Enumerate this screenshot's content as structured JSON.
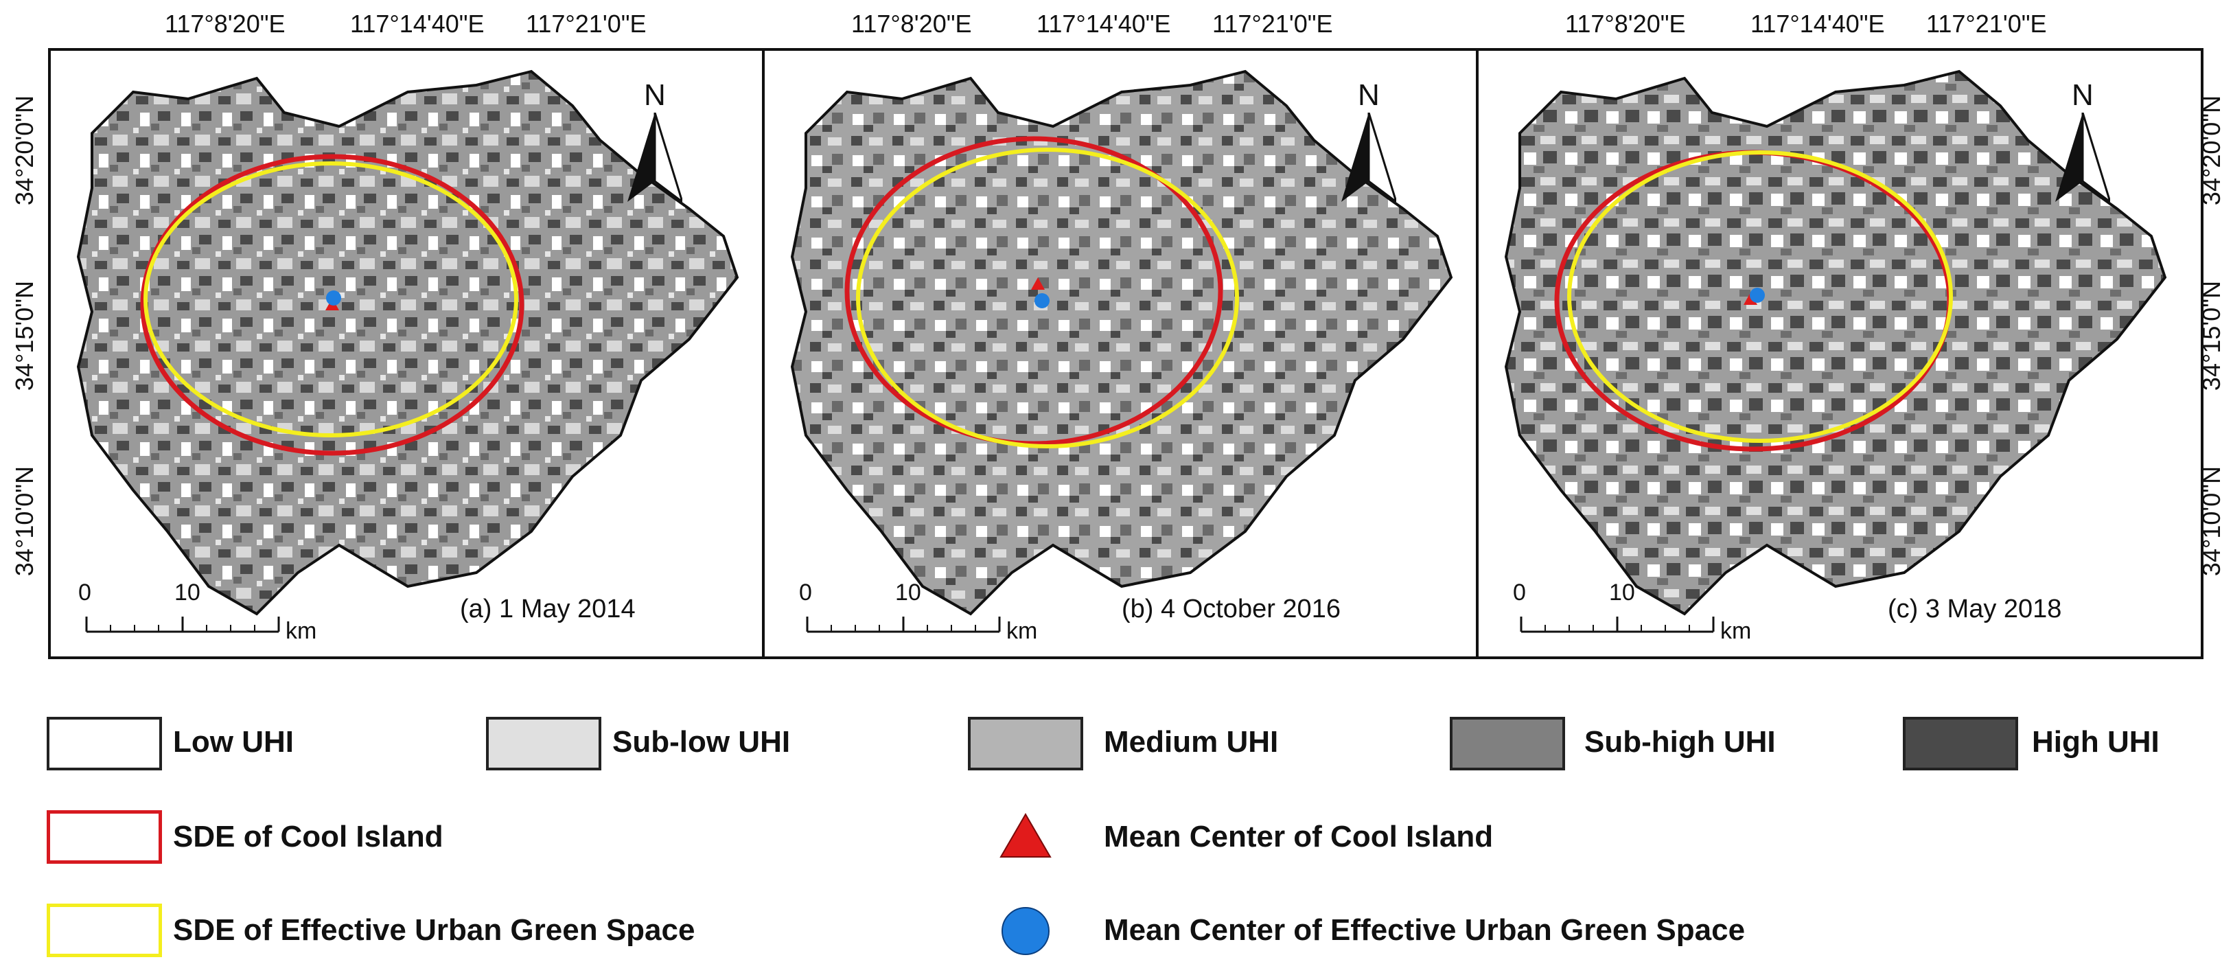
{
  "panels": [
    {
      "caption": "(a) 1 May 2014",
      "ellipses": {
        "cool": "red",
        "green": "yellow"
      }
    },
    {
      "caption": "(b) 4 October 2016",
      "ellipses": {
        "cool": "red",
        "green": "yellow"
      }
    },
    {
      "caption": "(c) 3 May 2018",
      "ellipses": {
        "cool": "red",
        "green": "yellow"
      }
    }
  ],
  "longitude_labels": [
    "117°8'20\"E",
    "117°14'40\"E",
    "117°21'0\"E"
  ],
  "latitude_labels": [
    "34°20'0\"N",
    "34°15'0\"N",
    "34°10'0\"N"
  ],
  "north_arrow": {
    "letter": "N",
    "icon": "north-arrow-icon"
  },
  "scale_bar": {
    "start": "0",
    "mid": "10",
    "unit": "km"
  },
  "legend": {
    "classes": [
      {
        "label": "Low UHI",
        "color": "#ffffff"
      },
      {
        "label": "Sub-low UHI",
        "color": "#e0e0e0"
      },
      {
        "label": "Medium UHI",
        "color": "#b4b4b4"
      },
      {
        "label": "Sub-high UHI",
        "color": "#808080"
      },
      {
        "label": "High UHI",
        "color": "#4a4a4a"
      }
    ],
    "sde_cool": {
      "label": "SDE of Cool Island",
      "color": "#d71920"
    },
    "sde_green": {
      "label": "SDE of Effective Urban Green Space",
      "color": "#f4ee1e"
    },
    "center_cool": {
      "label": "Mean Center of Cool Island",
      "color": "#e11b1b"
    },
    "center_green": {
      "label": "Mean Center of Effective Urban Green Space",
      "color": "#1f7fe0"
    }
  }
}
